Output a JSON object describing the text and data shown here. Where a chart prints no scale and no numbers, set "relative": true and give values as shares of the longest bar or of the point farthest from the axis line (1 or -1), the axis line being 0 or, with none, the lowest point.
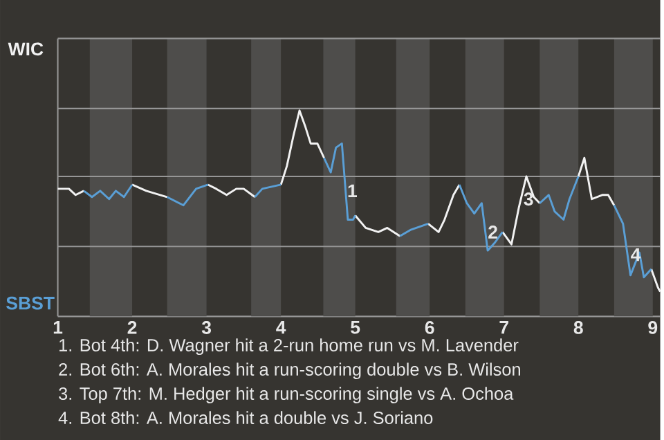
{
  "chart_data": {
    "type": "line",
    "relative": true,
    "x": [
      1,
      1.09,
      1.15,
      1.24,
      1.35,
      1.46,
      1.57,
      1.69,
      1.78,
      1.89,
      2,
      2.19,
      2.47,
      2.69,
      2.86,
      3.02,
      3.13,
      3.27,
      3.4,
      3.5,
      3.65,
      3.75,
      4,
      4.08,
      4.17,
      4.25,
      4.33,
      4.4,
      4.49,
      4.58,
      4.67,
      4.74,
      4.82,
      4.9,
      4.97,
      5,
      5.14,
      5.31,
      5.43,
      5.6,
      5.74,
      5.98,
      6.12,
      6.2,
      6.32,
      6.4,
      6.5,
      6.6,
      6.7,
      6.78,
      6.88,
      6.98,
      7.1,
      7.2,
      7.3,
      7.4,
      7.48,
      7.6,
      7.68,
      7.8,
      7.88,
      8,
      8.08,
      8.18,
      8.32,
      8.4,
      8.48,
      8.6,
      8.7,
      8.82,
      8.88,
      8.98,
      9.07,
      9.1
    ],
    "series": [
      {
        "color": "#f2f2f2",
        "values": [
          0.62,
          0.62,
          0.62,
          0.59,
          0.61,
          null,
          null,
          null,
          null,
          null,
          0.64,
          0.61,
          0.58,
          null,
          null,
          0.64,
          0.62,
          0.59,
          0.62,
          0.62,
          0.58,
          null,
          0.64,
          0.73,
          0.88,
          1,
          0.92,
          0.84,
          0.84,
          0.77,
          null,
          null,
          null,
          null,
          null,
          0.49,
          0.43,
          0.41,
          0.43,
          0.39,
          null,
          0.45,
          0.41,
          0.47,
          0.59,
          0.64,
          null,
          null,
          null,
          null,
          null,
          0.41,
          0.35,
          0.53,
          0.68,
          0.58,
          0.55,
          null,
          null,
          null,
          null,
          0.68,
          0.77,
          0.57,
          0.59,
          0.59,
          0.54,
          null,
          null,
          null,
          null,
          0.23,
          0.14,
          0.12
        ]
      },
      {
        "color": "#5a9fd6",
        "values": [
          null,
          null,
          null,
          null,
          0.61,
          0.58,
          0.61,
          0.57,
          0.61,
          0.58,
          0.64,
          null,
          0.58,
          0.54,
          0.62,
          0.64,
          null,
          null,
          null,
          null,
          0.58,
          0.62,
          0.64,
          null,
          null,
          null,
          null,
          null,
          null,
          0.77,
          0.7,
          0.82,
          0.84,
          0.47,
          0.47,
          0.49,
          null,
          null,
          null,
          0.39,
          0.42,
          0.45,
          null,
          null,
          null,
          0.64,
          0.55,
          0.5,
          0.55,
          0.32,
          0.36,
          0.41,
          null,
          null,
          null,
          null,
          0.55,
          0.59,
          0.51,
          0.47,
          0.57,
          0.68,
          null,
          null,
          null,
          null,
          0.54,
          0.45,
          0.2,
          0.31,
          0.19,
          0.23,
          null,
          null
        ]
      }
    ],
    "xlim": [
      1,
      9.1
    ],
    "xticks": [
      1,
      2,
      3,
      4,
      5,
      6,
      7,
      8,
      9
    ],
    "ref_lines": [
      {
        "axis": "y",
        "value": 0.34,
        "color": "#969696"
      },
      {
        "axis": "y",
        "value": 0.68,
        "color": "#969696"
      },
      {
        "axis": "y",
        "value": 1.01,
        "color": "#969696"
      },
      {
        "axis": "y",
        "value": 1.35,
        "color": "#969696"
      }
    ],
    "bands": [
      {
        "axis": "x",
        "from": 1.43,
        "to": 2,
        "color": "#4e4d4b"
      },
      {
        "axis": "x",
        "from": 2.47,
        "to": 3,
        "color": "#4e4d4b"
      },
      {
        "axis": "x",
        "from": 3.6,
        "to": 4,
        "color": "#4e4d4b"
      },
      {
        "axis": "x",
        "from": 4.57,
        "to": 5,
        "color": "#4e4d4b"
      },
      {
        "axis": "x",
        "from": 5.55,
        "to": 6,
        "color": "#4e4d4b"
      },
      {
        "axis": "x",
        "from": 6.48,
        "to": 7,
        "color": "#4e4d4b"
      },
      {
        "axis": "x",
        "from": 7.48,
        "to": 8,
        "color": "#4e4d4b"
      },
      {
        "axis": "x",
        "from": 8.48,
        "to": 9,
        "color": "#4e4d4b"
      }
    ],
    "annotations": [
      {
        "text": "1",
        "x": 4.96,
        "y": 0.61
      },
      {
        "text": "2",
        "x": 6.85,
        "y": 0.41
      },
      {
        "text": "3",
        "x": 7.33,
        "y": 0.57
      },
      {
        "text": "4",
        "x": 8.77,
        "y": 0.3
      },
      "WIC",
      "SBST",
      "1. Bot 4th: D. Wagner hit a 2-run home run vs M. Lavender",
      "2. Bot 6th: A. Morales hit a run-scoring double vs B. Wilson",
      "3. Top 7th: M. Hedger hit a run-scoring single vs A. Ochoa",
      "4. Bot 8th: A. Morales hit a double vs J. Soriano"
    ]
  }
}
